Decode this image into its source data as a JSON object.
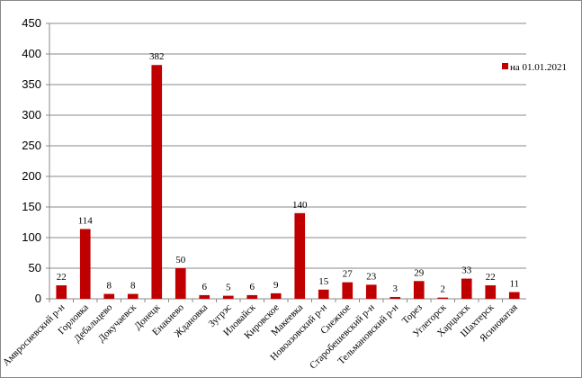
{
  "chart_data": {
    "type": "bar",
    "categories": [
      "Амвросиевский р-н",
      "Горловка",
      "Дебальцево",
      "Докучаевск",
      "Донецк",
      "Енакиево",
      "Ждановка",
      "Зугрэс",
      "Иловайск",
      "Кировское",
      "Макеевка",
      "Новоазовский р-н",
      "Снежное",
      "Старобешевский р-н",
      "Тельмановский р-н",
      "Торез",
      "Углегорск",
      "Харцызск",
      "Шахтерск",
      "Ясиноватая"
    ],
    "series": [
      {
        "name": "на 01.01.2021",
        "color": "#c00000",
        "values": [
          22,
          114,
          8,
          8,
          382,
          50,
          6,
          5,
          6,
          9,
          140,
          15,
          27,
          23,
          3,
          29,
          2,
          33,
          22,
          11
        ]
      }
    ],
    "ylim": [
      0,
      450
    ],
    "yticks": [
      0,
      50,
      100,
      150,
      200,
      250,
      300,
      350,
      400,
      450
    ],
    "grid": true,
    "legend": "right"
  }
}
